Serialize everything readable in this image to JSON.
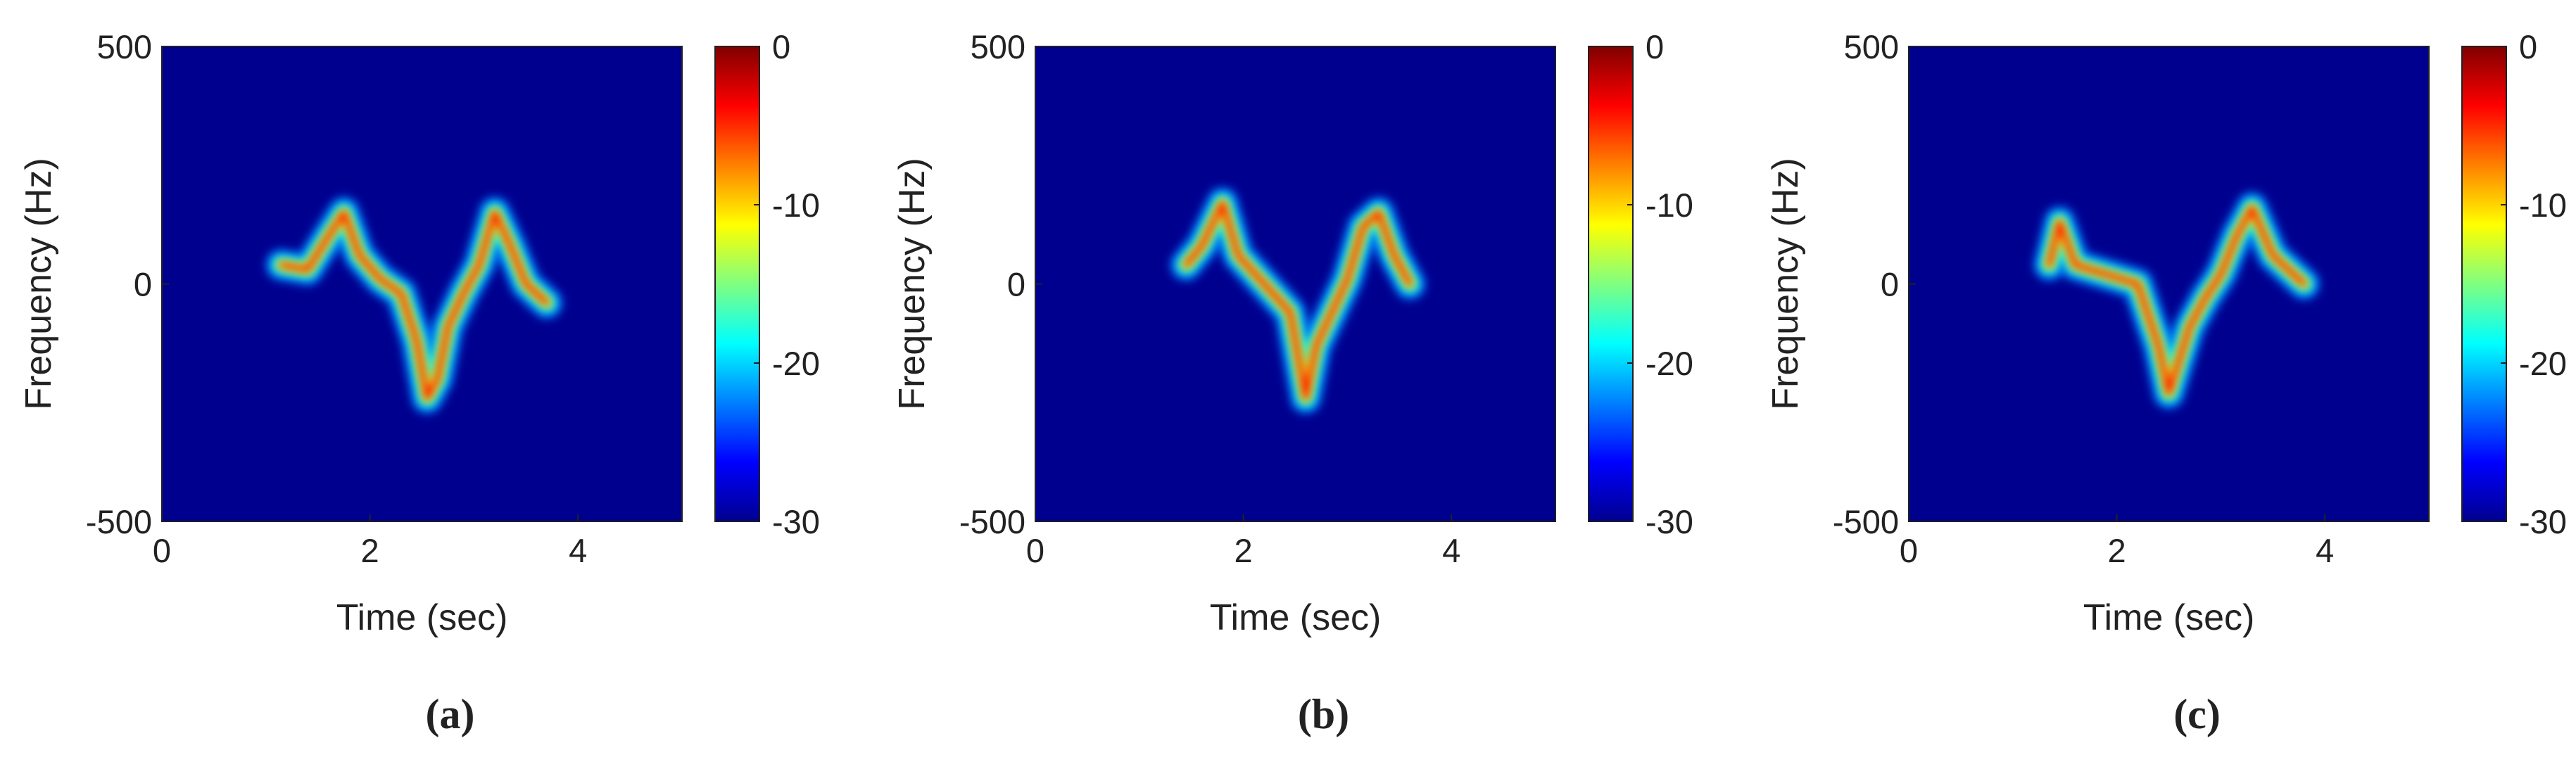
{
  "chart_data": [
    {
      "type": "spectrogram",
      "caption": "(a)",
      "xlabel": "Time (sec)",
      "ylabel": "Frequency (Hz)",
      "xlim": [
        0,
        5
      ],
      "ylim": [
        -500,
        500
      ],
      "xticks": [
        0,
        2,
        4
      ],
      "yticks": [
        -500,
        0,
        500
      ],
      "clim": [
        -30,
        0
      ],
      "cticks": [
        0,
        -10,
        -20,
        -30
      ],
      "colormap": "jet",
      "background": "#00008f",
      "x": [
        1.15,
        1.4,
        1.6,
        1.75,
        1.9,
        2.1,
        2.3,
        2.45,
        2.55,
        2.65,
        2.75,
        2.9,
        3.05,
        3.2,
        3.35,
        3.5,
        3.7
      ],
      "values": [
        40,
        30,
        100,
        150,
        60,
        10,
        -20,
        -120,
        -240,
        -200,
        -90,
        -20,
        40,
        150,
        80,
        0,
        -40
      ]
    },
    {
      "type": "spectrogram",
      "caption": "(b)",
      "xlabel": "Time (sec)",
      "ylabel": "Frequency (Hz)",
      "xlim": [
        0,
        5
      ],
      "ylim": [
        -500,
        500
      ],
      "xticks": [
        0,
        2,
        4
      ],
      "yticks": [
        -500,
        0,
        500
      ],
      "clim": [
        -30,
        0
      ],
      "cticks": [
        0,
        -10,
        -20,
        -30
      ],
      "colormap": "jet",
      "background": "#00008f",
      "x": [
        1.45,
        1.6,
        1.8,
        1.95,
        2.2,
        2.45,
        2.6,
        2.7,
        2.85,
        3.0,
        3.15,
        3.3,
        3.45,
        3.6
      ],
      "values": [
        40,
        80,
        170,
        60,
        0,
        -60,
        -240,
        -130,
        -60,
        10,
        120,
        150,
        60,
        0
      ]
    },
    {
      "type": "spectrogram",
      "caption": "(c)",
      "xlabel": "Time (sec)",
      "ylabel": "Frequency (Hz)",
      "xlim": [
        0,
        5
      ],
      "ylim": [
        -500,
        500
      ],
      "xticks": [
        0,
        2,
        4
      ],
      "yticks": [
        -500,
        0,
        500
      ],
      "clim": [
        -30,
        0
      ],
      "cticks": [
        0,
        -10,
        -20,
        -30
      ],
      "colormap": "jet",
      "background": "#00008f",
      "x": [
        1.35,
        1.45,
        1.6,
        2.2,
        2.4,
        2.5,
        2.6,
        2.7,
        2.85,
        3.0,
        3.15,
        3.3,
        3.5,
        3.8
      ],
      "values": [
        40,
        130,
        40,
        0,
        -130,
        -230,
        -160,
        -90,
        -30,
        20,
        100,
        160,
        60,
        0
      ]
    }
  ]
}
